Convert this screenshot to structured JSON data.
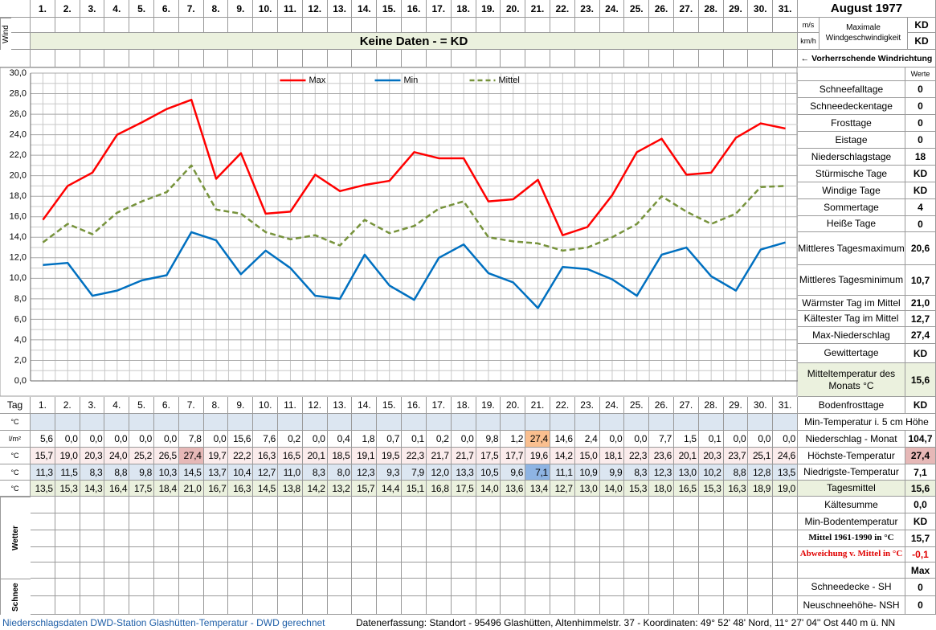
{
  "header": {
    "title": "August 1977",
    "wind_label": "Wind",
    "wind_units": [
      "m/s",
      "km/h"
    ],
    "wind_caption": "Maximale Windgeschwindigkeit",
    "wind_values": [
      "KD",
      "KD"
    ],
    "no_data": "Keine Daten -  = KD",
    "wind_direction": "← Vorherrschende Windrichtung"
  },
  "chart_data": {
    "type": "line",
    "categories": [
      "1.",
      "2.",
      "3.",
      "4.",
      "5.",
      "6.",
      "7.",
      "8.",
      "9.",
      "10.",
      "11.",
      "12.",
      "13.",
      "14.",
      "15.",
      "16.",
      "17.",
      "18.",
      "19.",
      "20.",
      "21.",
      "22.",
      "23.",
      "24.",
      "25.",
      "26.",
      "27.",
      "28.",
      "29.",
      "30.",
      "31."
    ],
    "ylim": [
      0,
      30
    ],
    "yticks": [
      {
        "value": 0,
        "label": "0,0"
      },
      {
        "value": 2,
        "label": "2,0"
      },
      {
        "value": 4,
        "label": "4,0"
      },
      {
        "value": 6,
        "label": "6,0"
      },
      {
        "value": 8,
        "label": "8,0"
      },
      {
        "value": 10,
        "label": "10,0"
      },
      {
        "value": 12,
        "label": "12,0"
      },
      {
        "value": 14,
        "label": "14,0"
      },
      {
        "value": 16,
        "label": "16,0"
      },
      {
        "value": 18,
        "label": "18,0"
      },
      {
        "value": 20,
        "label": "20,0"
      },
      {
        "value": 22,
        "label": "22,0"
      },
      {
        "value": 24,
        "label": "24,0"
      },
      {
        "value": 26,
        "label": "26,0"
      },
      {
        "value": 28,
        "label": "28,0"
      },
      {
        "value": 30,
        "label": "30,0"
      }
    ],
    "grid": true,
    "legend": "top",
    "series": [
      {
        "name": "Max",
        "color": "#ff0000",
        "dashed": false,
        "values": [
          15.7,
          19.0,
          20.3,
          24.0,
          25.2,
          26.5,
          27.4,
          19.7,
          22.2,
          16.3,
          16.5,
          20.1,
          18.5,
          19.1,
          19.5,
          22.3,
          21.7,
          21.7,
          17.5,
          17.7,
          19.6,
          14.2,
          15.0,
          18.1,
          22.3,
          23.6,
          20.1,
          20.3,
          23.7,
          25.1,
          24.6
        ],
        "value_labels": [
          "15,7",
          "19,0",
          "20,3",
          "24,0",
          "25,2",
          "26,5",
          "27,4",
          "19,7",
          "22,2",
          "16,3",
          "16,5",
          "20,1",
          "18,5",
          "19,1",
          "19,5",
          "22,3",
          "21,7",
          "21,7",
          "17,5",
          "17,7",
          "19,6",
          "14,2",
          "15,0",
          "18,1",
          "22,3",
          "23,6",
          "20,1",
          "20,3",
          "23,7",
          "25,1",
          "24,6"
        ]
      },
      {
        "name": "Min",
        "color": "#0070c0",
        "dashed": false,
        "values": [
          11.3,
          11.5,
          8.3,
          8.8,
          9.8,
          10.3,
          14.5,
          13.7,
          10.4,
          12.7,
          11.0,
          8.3,
          8.0,
          12.3,
          9.3,
          7.9,
          12.0,
          13.3,
          10.5,
          9.6,
          7.1,
          11.1,
          10.9,
          9.9,
          8.3,
          12.3,
          13.0,
          10.2,
          8.8,
          12.8,
          13.5
        ],
        "value_labels": [
          "11,3",
          "11,5",
          "8,3",
          "8,8",
          "9,8",
          "10,3",
          "14,5",
          "13,7",
          "10,4",
          "12,7",
          "11,0",
          "8,3",
          "8,0",
          "12,3",
          "9,3",
          "7,9",
          "12,0",
          "13,3",
          "10,5",
          "9,6",
          "7,1",
          "11,1",
          "10,9",
          "9,9",
          "8,3",
          "12,3",
          "13,0",
          "10,2",
          "8,8",
          "12,8",
          "13,5"
        ]
      },
      {
        "name": "Mittel",
        "color": "#77933c",
        "dashed": true,
        "values": [
          13.5,
          15.3,
          14.3,
          16.4,
          17.5,
          18.4,
          21.0,
          16.7,
          16.3,
          14.5,
          13.8,
          14.2,
          13.2,
          15.7,
          14.4,
          15.1,
          16.8,
          17.5,
          14.0,
          13.6,
          13.4,
          12.7,
          13.0,
          14.0,
          15.3,
          18.0,
          16.5,
          15.3,
          16.3,
          18.9,
          19.0
        ],
        "value_labels": [
          "13,5",
          "15,3",
          "14,3",
          "16,4",
          "17,5",
          "18,4",
          "21,0",
          "16,7",
          "16,3",
          "14,5",
          "13,8",
          "14,2",
          "13,2",
          "15,7",
          "14,4",
          "15,1",
          "16,8",
          "17,5",
          "14,0",
          "13,6",
          "13,4",
          "12,7",
          "13,0",
          "14,0",
          "15,3",
          "18,0",
          "16,5",
          "15,3",
          "16,3",
          "18,9",
          "19,0"
        ]
      }
    ]
  },
  "table": {
    "row_header": "Tag",
    "units": [
      "°C",
      "l/m²",
      "°C",
      "°C",
      "°C"
    ],
    "precipitation": [
      "5,6",
      "0,0",
      "0,0",
      "0,0",
      "0,0",
      "0,0",
      "7,8",
      "0,0",
      "15,6",
      "7,6",
      "0,2",
      "0,0",
      "0,4",
      "1,8",
      "0,7",
      "0,1",
      "0,2",
      "0,0",
      "9,8",
      "1,2",
      "27,4",
      "14,6",
      "2,4",
      "0,0",
      "0,0",
      "7,7",
      "1,5",
      "0,1",
      "0,0",
      "0,0",
      "0,0"
    ],
    "weather_label": "Wetter",
    "snow_label": "Schnee"
  },
  "summary": {
    "header": "Werte",
    "rows": [
      {
        "label": "Schneefalltage",
        "value": "0"
      },
      {
        "label": "Schneedeckentage",
        "value": "0"
      },
      {
        "label": "Frosttage",
        "value": "0"
      },
      {
        "label": "Eistage",
        "value": "0"
      },
      {
        "label": "Niederschlagstage",
        "value": "18"
      },
      {
        "label": "Stürmische Tage",
        "value": "KD"
      },
      {
        "label": "Windige Tage",
        "value": "KD"
      },
      {
        "label": "Sommertage",
        "value": "4"
      },
      {
        "label": "Heiße Tage",
        "value": "0"
      },
      {
        "label": "Mittleres Tagesmaximum",
        "value": "20,6"
      },
      {
        "label": "Mittleres Tagesminimum",
        "value": "10,7"
      },
      {
        "label": "Wärmster Tag im Mittel",
        "value": "21,0"
      },
      {
        "label": "Kältester Tag im Mittel",
        "value": "12,7"
      },
      {
        "label": "Max-Niederschlag",
        "value": "27,4"
      },
      {
        "label": "Gewittertage",
        "value": "KD"
      },
      {
        "label": "Mitteltemperatur des Monats °C",
        "value": "15,6"
      },
      {
        "label": "Bodenfrosttage",
        "value": "KD"
      },
      {
        "label": "Min-Temperatur i. 5 cm Höhe"
      },
      {
        "label": "Niederschlag - Monat",
        "value": "104,7"
      },
      {
        "label": "Höchste-Temperatur",
        "value": "27,4"
      },
      {
        "label": "Niedrigste-Temperatur",
        "value": "7,1"
      },
      {
        "label": "Tagesmittel",
        "value": "15,6"
      },
      {
        "label": "Kältesumme",
        "value": "0,0"
      },
      {
        "label": "Min-Bodentemperatur",
        "value": "KD"
      },
      {
        "label": "Mittel 1961-1990 in °C",
        "value": "15,7"
      },
      {
        "label": "Abweichung v. Mittel in °C",
        "value": "-0,1"
      },
      {
        "value": "Max"
      },
      {
        "label": "Schneedecke -   SH",
        "value": "0"
      },
      {
        "label": "Neuschneehöhe- NSH",
        "value": "0"
      }
    ]
  },
  "footer": {
    "left": "Niederschlagsdaten DWD-Station Glashütten-Temperatur -  DWD gerechnet",
    "right": "Datenerfassung: Standort -  95496  Glashütten, Altenhimmelstr. 37 - Koordinaten:  49° 52' 48' Nord,   11° 27' 04'' Ost   440 m ü. NN"
  }
}
